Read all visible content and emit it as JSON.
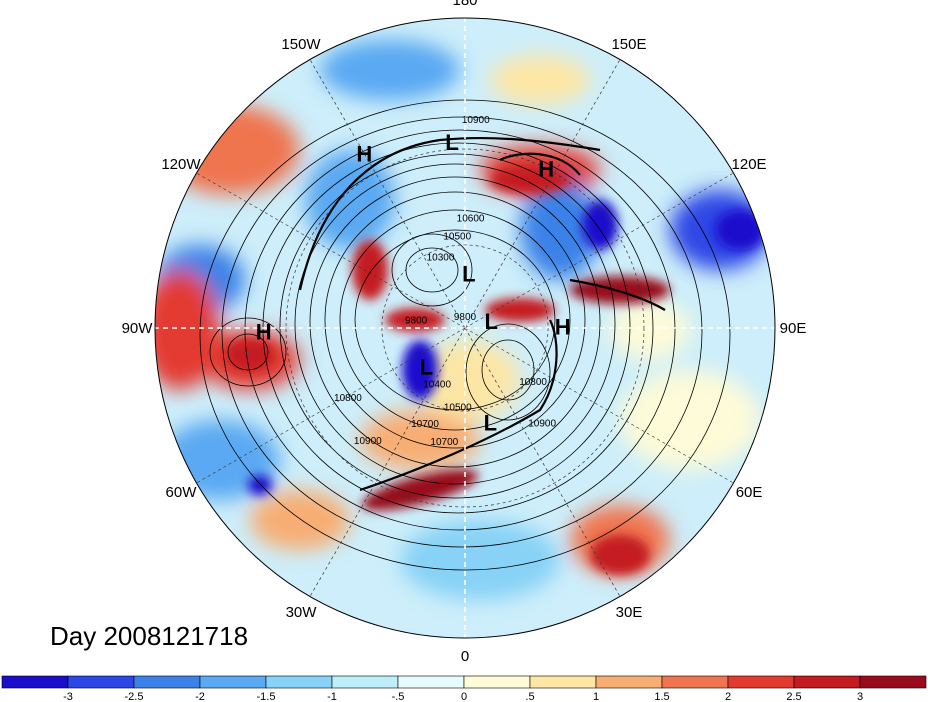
{
  "title": "Day 2008121718",
  "longitude_labels": [
    {
      "text": "90E",
      "lon": 90
    },
    {
      "text": "60E",
      "lon": 60
    },
    {
      "text": "30E",
      "lon": 30
    },
    {
      "text": "0",
      "lon": 0
    },
    {
      "text": "30W",
      "lon": -30
    },
    {
      "text": "60W",
      "lon": -60
    },
    {
      "text": "90W",
      "lon": -90
    },
    {
      "text": "120W",
      "lon": -120
    },
    {
      "text": "150W",
      "lon": -150
    },
    {
      "text": "180",
      "lon": 180
    },
    {
      "text": "150E",
      "lon": 150
    },
    {
      "text": "120E",
      "lon": 120
    }
  ],
  "pressure_centers": [
    {
      "label": "H",
      "lon": 91,
      "lat": 55
    },
    {
      "label": "H",
      "lon": 153,
      "lat": 30
    },
    {
      "label": "H",
      "lon": -150,
      "lat": 24
    },
    {
      "label": "H",
      "lon": -89,
      "lat": 24
    },
    {
      "label": "L",
      "lon": 105,
      "lat": 80
    },
    {
      "label": "L",
      "lon": 176,
      "lat": 70
    },
    {
      "label": "L",
      "lon": -176,
      "lat": 28
    },
    {
      "label": "L",
      "lon": -45,
      "lat": 70
    },
    {
      "label": "L",
      "lon": 15,
      "lat": 55
    }
  ],
  "contour_labels": [
    {
      "text": "10900",
      "lon": 38,
      "lat": 46
    },
    {
      "text": "10800",
      "lon": 50,
      "lat": 58
    },
    {
      "text": "9800",
      "lon": 180,
      "lat": 87
    },
    {
      "text": "10900",
      "lon": 177,
      "lat": 23
    },
    {
      "text": "10600",
      "lon": 177,
      "lat": 52
    },
    {
      "text": "10300",
      "lon": -160,
      "lat": 64
    },
    {
      "text": "10500",
      "lon": -175,
      "lat": 58
    },
    {
      "text": "9800",
      "lon": -95,
      "lat": 72
    },
    {
      "text": "10400",
      "lon": -25,
      "lat": 66
    },
    {
      "text": "10500",
      "lon": -5,
      "lat": 60
    },
    {
      "text": "10700",
      "lon": -10,
      "lat": 48
    },
    {
      "text": "10700",
      "lon": -22,
      "lat": 52
    },
    {
      "text": "10900",
      "lon": -40,
      "lat": 38
    },
    {
      "text": "10800",
      "lon": -58,
      "lat": 42
    }
  ],
  "colorbar": {
    "tick_labels": [
      "-3",
      "-2.5",
      "-2",
      "-1.5",
      "-1",
      "-.5",
      "0",
      ".5",
      "1",
      "1.5",
      "2",
      "2.5",
      "3"
    ],
    "colors": [
      "#1a0dcc",
      "#2d47e6",
      "#3b82e8",
      "#5aa9f2",
      "#87d2f6",
      "#bdeefa",
      "#e8fbfc",
      "#fdfbd8",
      "#fde6a5",
      "#f8ad73",
      "#ef7450",
      "#e33a30",
      "#c41b22",
      "#990b1c"
    ]
  },
  "chart_data": {
    "type": "map",
    "projection": "north-polar-stereographic",
    "center": "North Pole",
    "field_shaded": "anomaly",
    "contour_interval": 100,
    "colorbar_range": [
      -3,
      3
    ]
  }
}
